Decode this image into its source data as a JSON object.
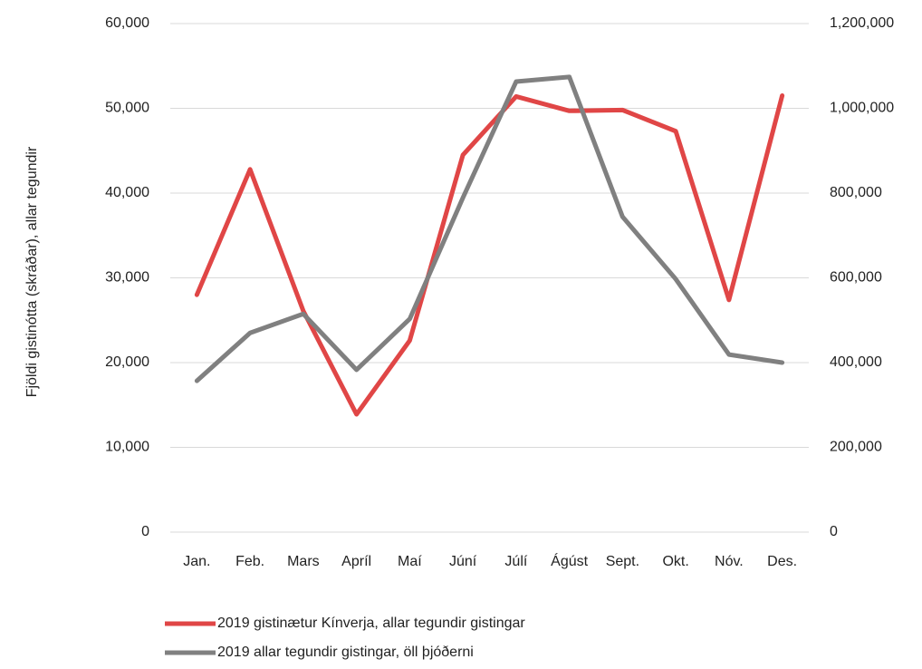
{
  "chart_data": {
    "type": "line",
    "y_axis_label": "Fjöldi gistinótta (skráðar), allar tegundir",
    "categories": [
      "Jan.",
      "Feb.",
      "Mars",
      "Apríl",
      "Maí",
      "Júní",
      "Júlí",
      "Ágúst",
      "Sept.",
      "Okt.",
      "Nóv.",
      "Des."
    ],
    "series": [
      {
        "name": "2019 gistinætur Kínverja, allar tegundir gistingar",
        "color": "#e04646",
        "values": [
          28000,
          42800,
          26100,
          13900,
          22600,
          44500,
          51400,
          49700,
          49800,
          47300,
          27400,
          51500
        ]
      },
      {
        "name": "2019 allar tegundir gistingar, öll þjóðerni",
        "color": "#808080",
        "axis": "y2",
        "values": [
          357000,
          470000,
          515000,
          383000,
          503000,
          789000,
          1063000,
          1074000,
          744000,
          597000,
          419000,
          400000
        ]
      }
    ],
    "ylim": [
      0,
      60000
    ],
    "yticks": [
      0,
      {
        "value": 10000,
        "label": "10,000"
      },
      {
        "value": 20000,
        "label": "20,000"
      },
      {
        "value": 30000,
        "label": "30,000"
      },
      {
        "value": 40000,
        "label": "40,000"
      },
      {
        "value": 50000,
        "label": "50,000"
      },
      {
        "value": 60000,
        "label": "60,000"
      }
    ],
    "y2lim": [
      0,
      1200000
    ],
    "y2ticks": [
      0,
      {
        "value": 200000,
        "label": "200,000"
      },
      {
        "value": 400000,
        "label": "400,000"
      },
      {
        "value": 600000,
        "label": "600,000"
      },
      {
        "value": 800000,
        "label": "800,000"
      },
      {
        "value": 1000000,
        "label": "1,000,000"
      },
      {
        "value": 1200000,
        "label": "1,200,000"
      }
    ],
    "grid": true,
    "legend": "bottom"
  }
}
